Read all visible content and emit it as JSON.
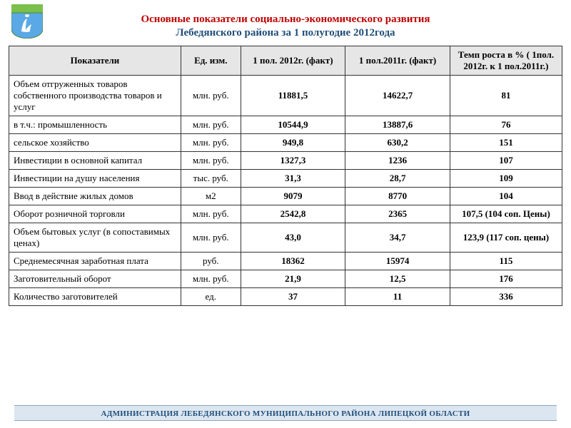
{
  "title": {
    "line1": "Основные показатели социально-экономического развития",
    "line2": "Лебедянского района за 1 полугодие 2012года"
  },
  "logo": {
    "shield_fill": "#5aa9e6",
    "shield_stroke": "#7bbf4c",
    "top_band": "#7bbf4c"
  },
  "table": {
    "columns": [
      "Показатели",
      "Ед. изм.",
      "1 пол. 2012г. (факт)",
      "1 пол.2011г. (факт)",
      "Темп роста в %  ( 1пол. 2012г. к 1 пол.2011г.)"
    ],
    "col_widths": [
      "230px",
      "80px",
      "140px",
      "140px",
      "150px"
    ],
    "header_bg": "#e6e6e6",
    "border_color": "#333333",
    "rows": [
      {
        "label": "Объем отгруженных товаров собственного производства товаров и услуг",
        "unit": "млн. руб.",
        "v2012": "11881,5",
        "v2011": "14622,7",
        "rate": "81"
      },
      {
        "label": "в т.ч.: промышленность",
        "unit": "млн. руб.",
        "v2012": "10544,9",
        "v2011": "13887,6",
        "rate": "76"
      },
      {
        "label": "сельское хозяйство",
        "unit": "млн. руб.",
        "v2012": "949,8",
        "v2011": "630,2",
        "rate": "151"
      },
      {
        "label": "Инвестиции в основной капитал",
        "unit": "млн. руб.",
        "v2012": "1327,3",
        "v2011": "1236",
        "rate": "107"
      },
      {
        "label": "Инвестиции на душу населения",
        "unit": "тыс. руб.",
        "v2012": "31,3",
        "v2011": "28,7",
        "rate": "109"
      },
      {
        "label": "Ввод в действие жилых домов",
        "unit": "м2",
        "v2012": "9079",
        "v2011": "8770",
        "rate": "104"
      },
      {
        "label": "Оборот розничной торговли",
        "unit": "млн. руб.",
        "v2012": "2542,8",
        "v2011": "2365",
        "rate": "107,5 (104 соп. Цены)"
      },
      {
        "label": "Объем бытовых услуг (в сопоставимых ценах)",
        "unit": "млн. руб.",
        "v2012": "43,0",
        "v2011": "34,7",
        "rate": "123,9 (117 соп. цены)"
      },
      {
        "label": "Среднемесячная заработная плата",
        "unit": "руб.",
        "v2012": "18362",
        "v2011": "15974",
        "rate": "115"
      },
      {
        "label": "Заготовительный оборот",
        "unit": "млн. руб.",
        "v2012": "21,9",
        "v2011": "12,5",
        "rate": "176"
      },
      {
        "label": "Количество заготовителей",
        "unit": "ед.",
        "v2012": "37",
        "v2011": "11",
        "rate": "336"
      }
    ]
  },
  "footer": "АДМИНИСТРАЦИЯ ЛЕБЕДЯНСКОГО МУНИЦИПАЛЬНОГО РАЙОНА ЛИПЕЦКОЙ ОБЛАСТИ"
}
